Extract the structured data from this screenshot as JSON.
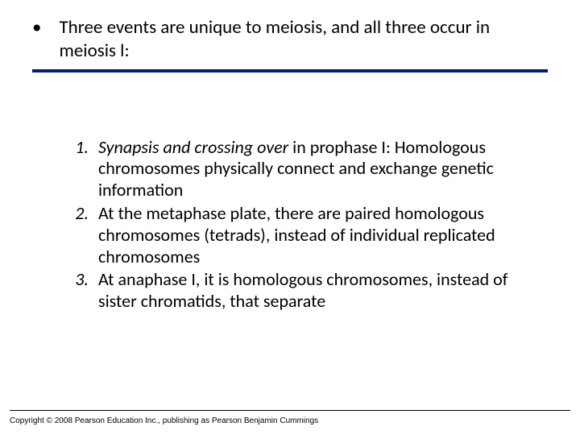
{
  "header": {
    "bullet": "•",
    "text": "Three events are unique to meiosis, and all three occur in meiosis l:"
  },
  "items": [
    {
      "number": "1.",
      "lead": "Synapsis and crossing over",
      "rest": " in prophase I: Homologous chromosomes physically connect and exchange genetic information"
    },
    {
      "number": "2.",
      "lead": "",
      "rest": "At the metaphase plate, there are paired homologous chromosomes (tetrads), instead of individual replicated chromosomes"
    },
    {
      "number": "3.",
      "lead": "",
      "rest": "At anaphase I, it is homologous chromosomes, instead of sister chromatids, that separate"
    }
  ],
  "copyright": "Copyright © 2008 Pearson Education Inc., publishing as Pearson Benjamin Cummings",
  "colors": {
    "divider": "#002060",
    "text": "#000000",
    "background": "#ffffff"
  },
  "typography": {
    "header_fontsize": 23,
    "body_fontsize": 22,
    "copyright_fontsize": 10
  }
}
